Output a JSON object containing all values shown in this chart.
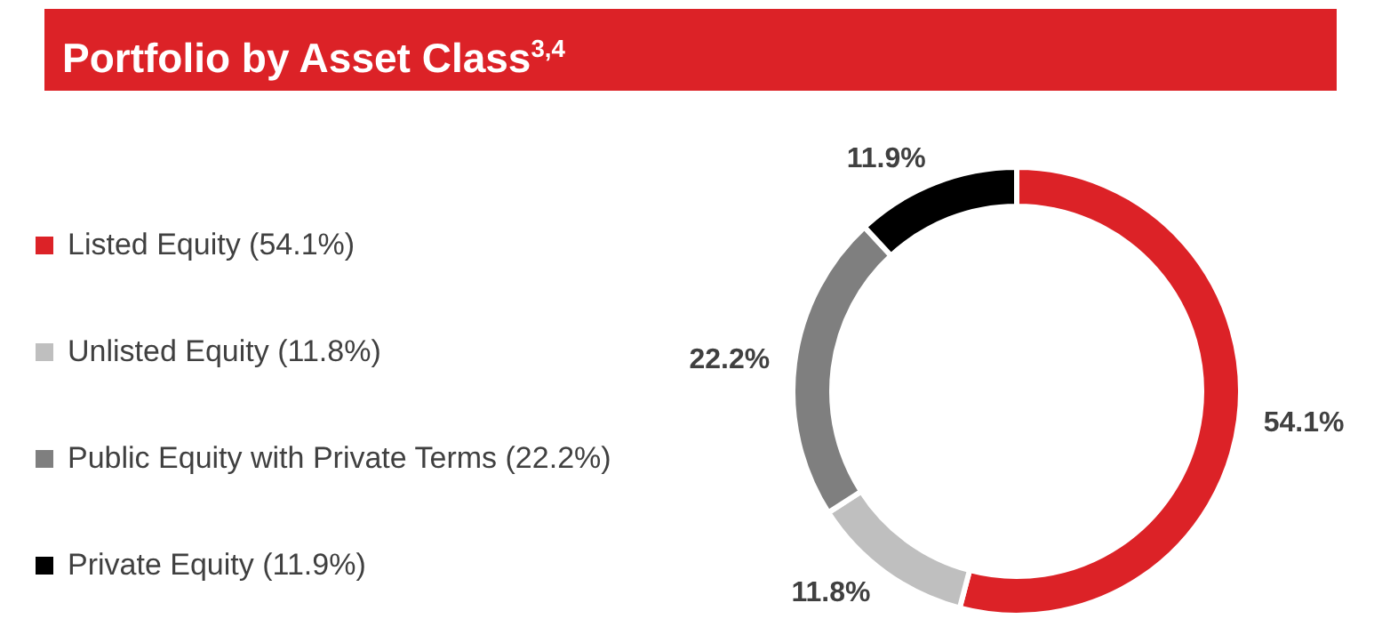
{
  "chart_data": {
    "type": "donut",
    "title": "Portfolio by Asset Class$^{3,4}$",
    "categories": [
      "Listed Equity (54.1%)",
      "Unlisted Equity (11.8%)",
      "Public Equity with Private Terms (22.2%)",
      "Private Equity (11.9%)"
    ],
    "values": [
      54.1,
      11.8,
      22.2,
      11.9
    ],
    "colors": [
      "#dc2227",
      "#bfbfbf",
      "#7f7f7f",
      "#000000"
    ],
    "value_labels": [
      "54.1%",
      "11.8%",
      "22.2%",
      "11.9%"
    ],
    "legend": "left"
  }
}
